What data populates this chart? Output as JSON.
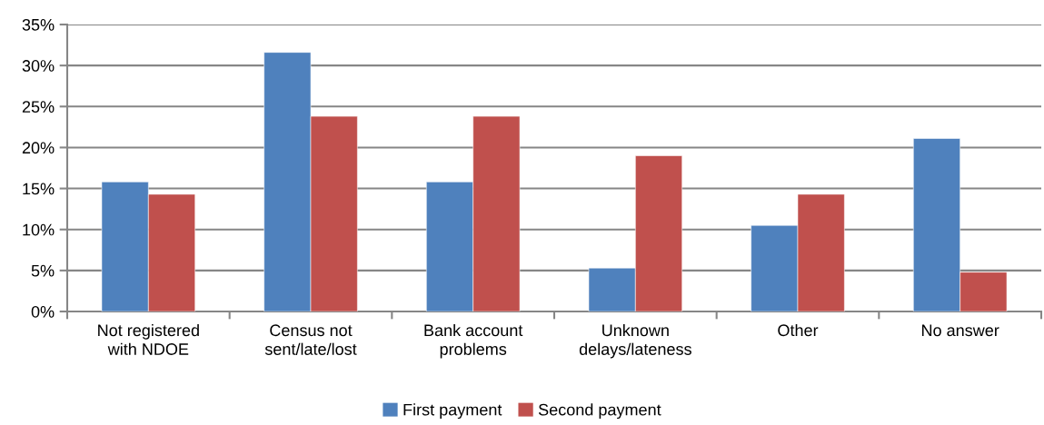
{
  "chart_data": {
    "type": "bar",
    "categories": [
      "Not registered\nwith NDOE",
      "Census not\nsent/late/lost",
      "Bank account\nproblems",
      "Unknown\ndelays/lateness",
      "Other",
      "No answer"
    ],
    "series": [
      {
        "name": "First payment",
        "color": "#4f81bd",
        "values": [
          15.8,
          31.6,
          15.8,
          5.3,
          10.5,
          21.1
        ]
      },
      {
        "name": "Second payment",
        "color": "#c0504d",
        "values": [
          14.3,
          23.8,
          23.8,
          19.0,
          14.3,
          4.8
        ]
      }
    ],
    "ylim": [
      0,
      35
    ],
    "yticks": [
      {
        "value": 0,
        "label": "0%"
      },
      {
        "value": 5,
        "label": "5%"
      },
      {
        "value": 10,
        "label": "10%"
      },
      {
        "value": 15,
        "label": "15%"
      },
      {
        "value": 20,
        "label": "20%"
      },
      {
        "value": 25,
        "label": "25%"
      },
      {
        "value": 30,
        "label": "30%"
      },
      {
        "value": 35,
        "label": "35%"
      }
    ],
    "grid": "y",
    "legend": "bottom"
  }
}
